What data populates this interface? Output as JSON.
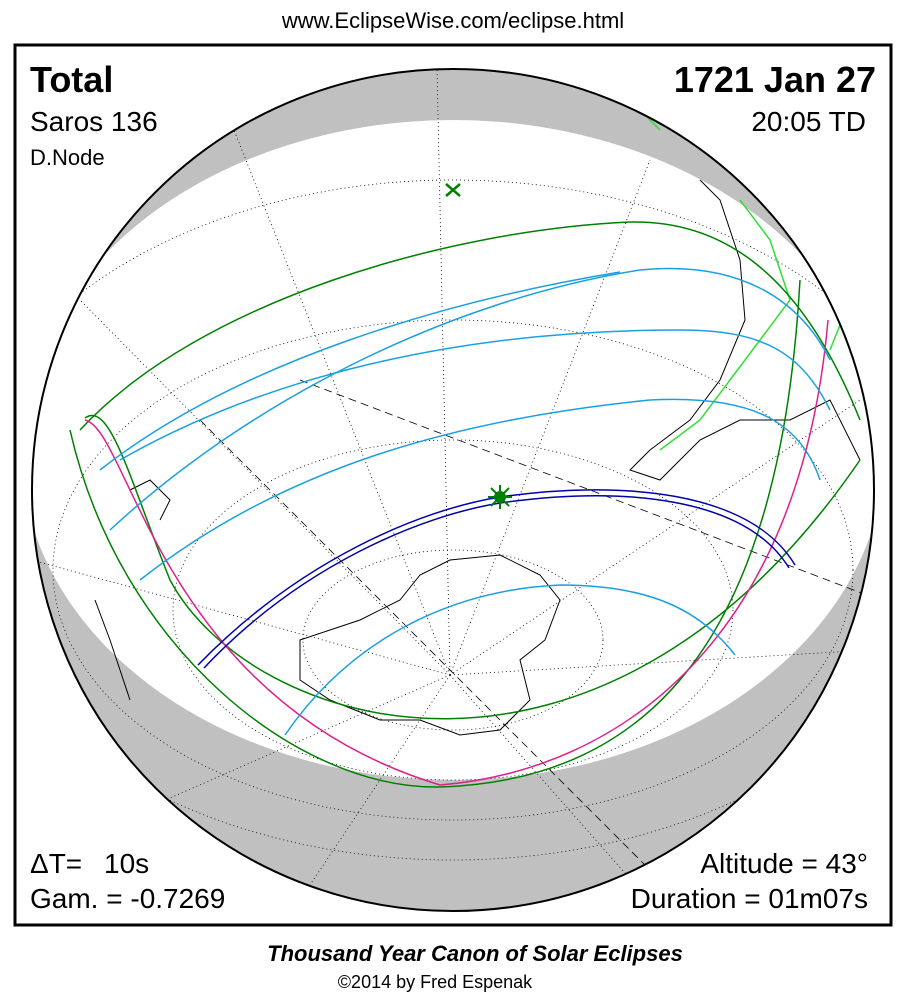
{
  "header": {
    "url": "www.EclipseWise.com/eclipse.html"
  },
  "panel": {
    "type": "Total",
    "date": "1721 Jan 27",
    "saros": "Saros 136",
    "time": "20:05 TD",
    "node": "D.Node",
    "delta_t_label": "ΔT=",
    "delta_t": "10s",
    "gamma": "Gam. = -0.7269",
    "altitude": "Altitude = 43°",
    "duration": "Duration = 01m07s"
  },
  "footer": {
    "title": "Thousand Year Canon of Solar Eclipses",
    "copyright": "©2014 by Fred Espenak"
  }
}
